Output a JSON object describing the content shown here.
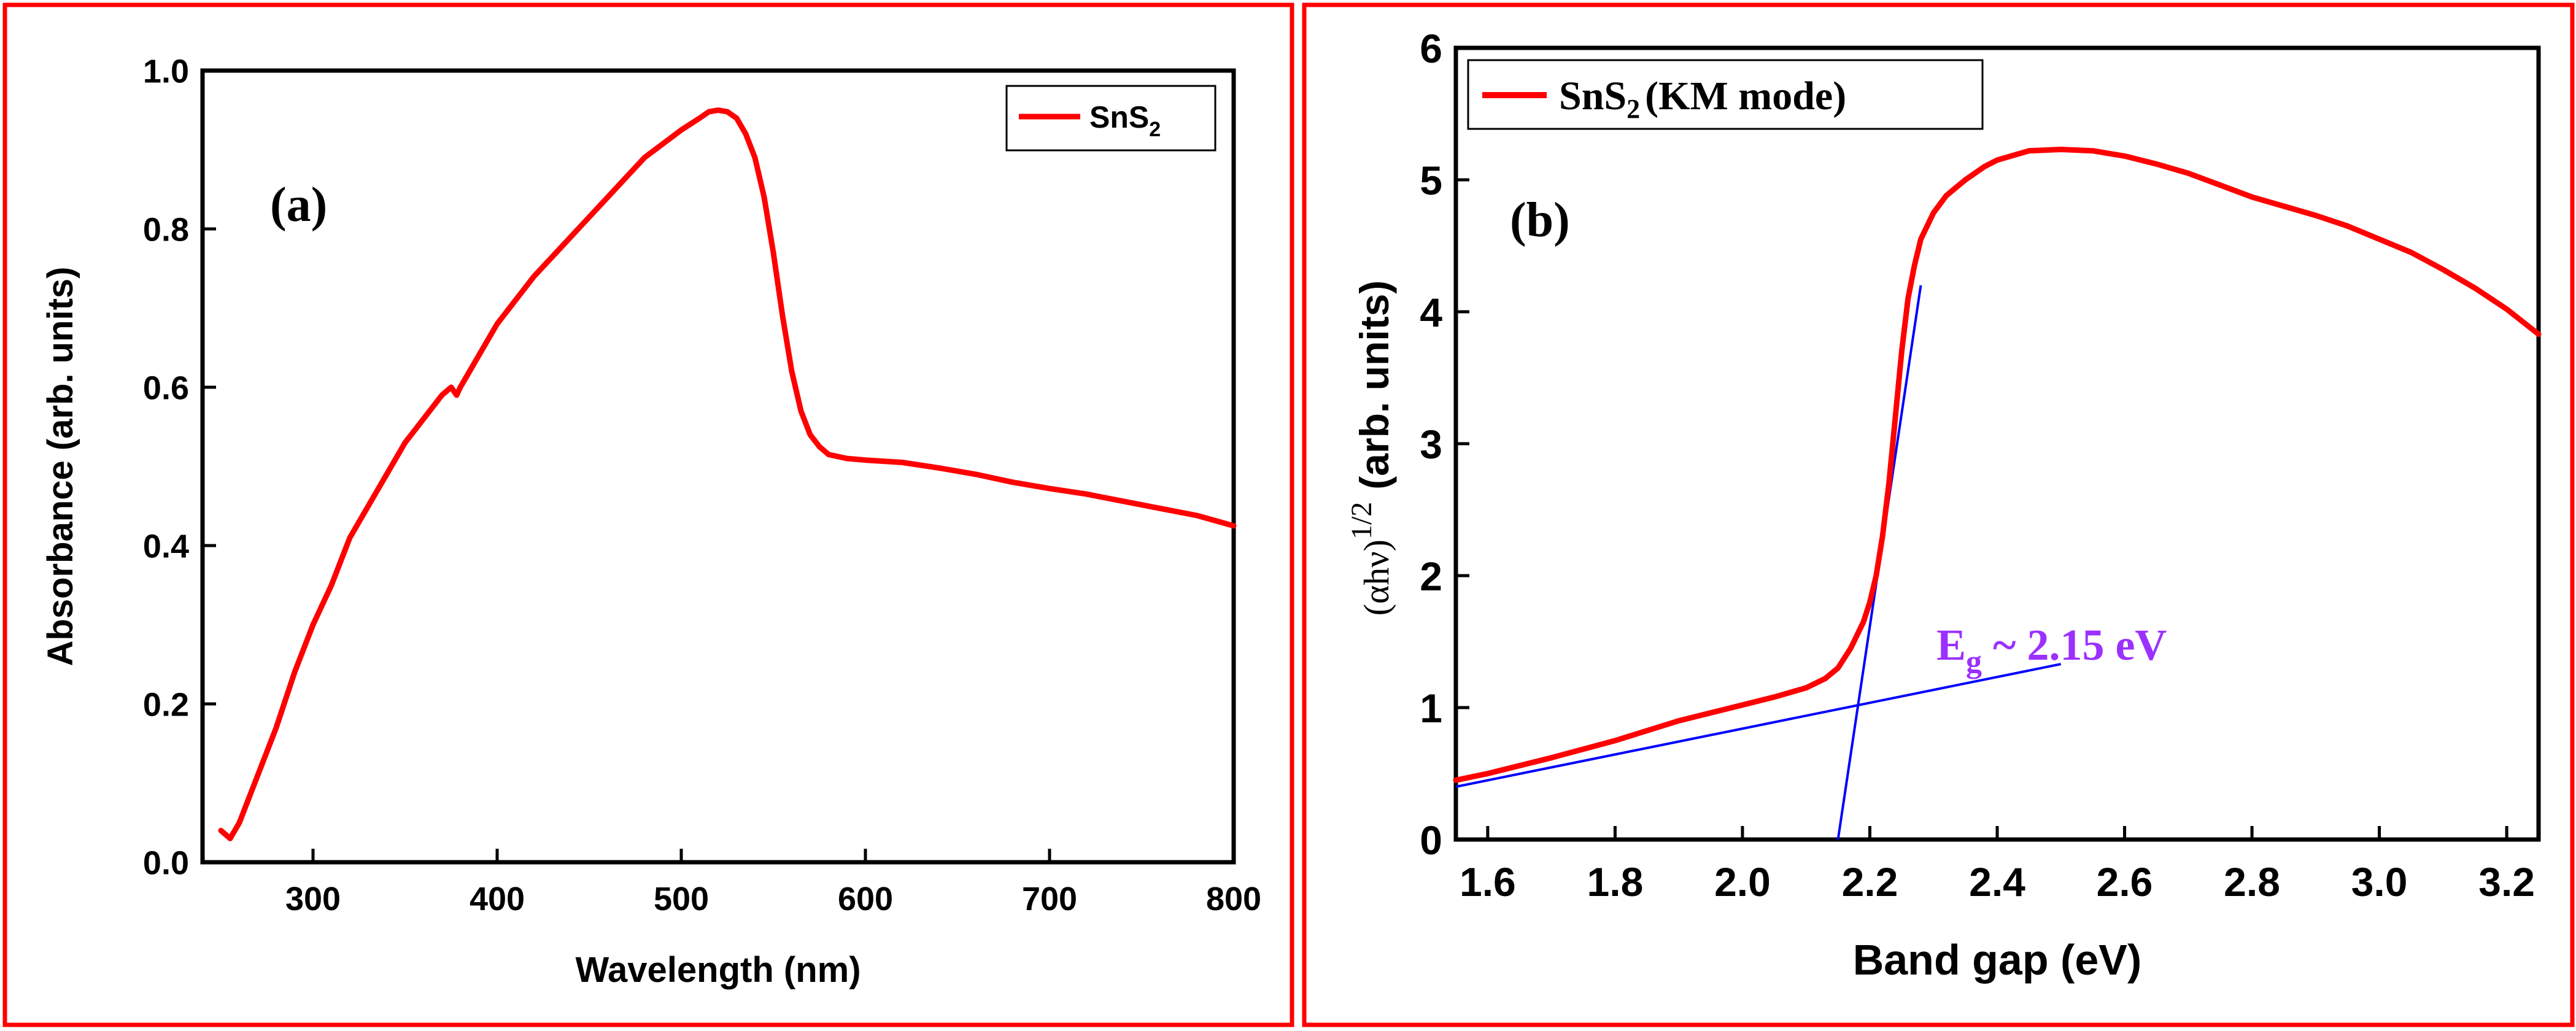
{
  "colors": {
    "frame": "#ff0000",
    "series": "#ff0000",
    "fit_line": "#0000ff",
    "annotation": "#9b30ff",
    "axis": "#000000"
  },
  "chart_data": [
    {
      "type": "line",
      "panel_label": "(a)",
      "title": "",
      "xlabel": "Wavelength (nm)",
      "ylabel": "Absorbance (arb. units)",
      "xlim": [
        240,
        800
      ],
      "ylim": [
        0.0,
        1.0
      ],
      "xticks": [
        300,
        400,
        500,
        600,
        700,
        800
      ],
      "xtick_labels": [
        "300",
        "400",
        "500",
        "600",
        "700",
        "800"
      ],
      "yticks": [
        0.0,
        0.2,
        0.4,
        0.6,
        0.8,
        1.0
      ],
      "ytick_labels": [
        "0.0",
        "0.2",
        "0.4",
        "0.6",
        "0.8",
        "1.0"
      ],
      "legend": {
        "position": "top-right",
        "entries": [
          {
            "text": "SnS",
            "sub": "2"
          }
        ]
      },
      "series": [
        {
          "name": "SnS2",
          "x": [
            250,
            255,
            260,
            265,
            270,
            280,
            290,
            300,
            310,
            320,
            330,
            340,
            350,
            360,
            370,
            375,
            378,
            380,
            390,
            400,
            420,
            440,
            460,
            480,
            500,
            510,
            515,
            520,
            525,
            530,
            535,
            540,
            545,
            550,
            555,
            560,
            565,
            570,
            575,
            580,
            590,
            600,
            620,
            640,
            660,
            680,
            700,
            720,
            740,
            760,
            780,
            800
          ],
          "y": [
            0.04,
            0.03,
            0.05,
            0.08,
            0.11,
            0.17,
            0.24,
            0.3,
            0.35,
            0.41,
            0.45,
            0.49,
            0.53,
            0.56,
            0.59,
            0.6,
            0.59,
            0.6,
            0.64,
            0.68,
            0.74,
            0.79,
            0.84,
            0.89,
            0.925,
            0.94,
            0.948,
            0.95,
            0.948,
            0.94,
            0.92,
            0.89,
            0.84,
            0.77,
            0.69,
            0.62,
            0.57,
            0.54,
            0.525,
            0.515,
            0.51,
            0.508,
            0.505,
            0.498,
            0.49,
            0.48,
            0.472,
            0.465,
            0.456,
            0.447,
            0.438,
            0.425
          ]
        }
      ]
    },
    {
      "type": "line",
      "panel_label": "(b)",
      "title": "",
      "xlabel": "Band gap (eV)",
      "ylabel": "(arb. units)",
      "ylabel_prefix": "(αhν)",
      "ylabel_exp": "1/2",
      "xlim": [
        1.55,
        3.25
      ],
      "ylim": [
        0,
        6
      ],
      "xticks": [
        1.6,
        1.8,
        2.0,
        2.2,
        2.4,
        2.6,
        2.8,
        3.0,
        3.2
      ],
      "xtick_labels": [
        "1.6",
        "1.8",
        "2.0",
        "2.2",
        "2.4",
        "2.6",
        "2.8",
        "3.0",
        "3.2"
      ],
      "yticks": [
        0,
        1,
        2,
        3,
        4,
        5,
        6
      ],
      "ytick_labels": [
        "0",
        "1",
        "2",
        "3",
        "4",
        "5",
        "6"
      ],
      "legend": {
        "position": "top-left",
        "entries": [
          {
            "text": "SnS",
            "sub": "2",
            "suffix": "(KM mode)"
          }
        ]
      },
      "annotation": {
        "main": "E",
        "sub": "g",
        "rest": " ~ 2.15 eV"
      },
      "series": [
        {
          "name": "SnS2 (KM mode)",
          "x": [
            1.55,
            1.6,
            1.7,
            1.8,
            1.9,
            2.0,
            2.05,
            2.1,
            2.13,
            2.15,
            2.17,
            2.19,
            2.2,
            2.21,
            2.22,
            2.23,
            2.24,
            2.25,
            2.26,
            2.27,
            2.28,
            2.3,
            2.32,
            2.35,
            2.38,
            2.4,
            2.45,
            2.5,
            2.55,
            2.6,
            2.65,
            2.7,
            2.75,
            2.8,
            2.85,
            2.9,
            2.95,
            3.0,
            3.05,
            3.1,
            3.15,
            3.2,
            3.25
          ],
          "y": [
            0.45,
            0.5,
            0.62,
            0.75,
            0.9,
            1.02,
            1.08,
            1.15,
            1.22,
            1.3,
            1.45,
            1.65,
            1.8,
            2.0,
            2.3,
            2.7,
            3.2,
            3.7,
            4.1,
            4.35,
            4.55,
            4.75,
            4.88,
            5.0,
            5.1,
            5.15,
            5.22,
            5.23,
            5.22,
            5.18,
            5.12,
            5.05,
            4.96,
            4.87,
            4.8,
            4.73,
            4.65,
            4.55,
            4.45,
            4.32,
            4.18,
            4.02,
            3.83
          ]
        }
      ],
      "fit_lines": [
        {
          "name": "baseline-fit",
          "x": [
            1.55,
            2.5
          ],
          "y": [
            0.4,
            1.33
          ]
        },
        {
          "name": "edge-fit",
          "x": [
            2.15,
            2.28
          ],
          "y": [
            0.0,
            4.2
          ]
        }
      ]
    }
  ]
}
